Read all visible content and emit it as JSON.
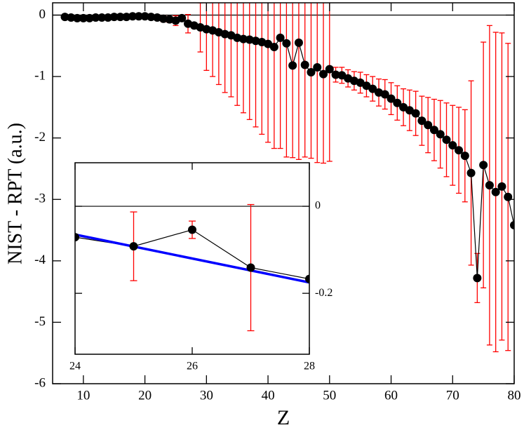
{
  "chart_data": [
    {
      "type": "line",
      "x_label": "Z",
      "y_label": "NIST - RPT (a.u.)",
      "xlim": [
        5,
        80
      ],
      "ylim": [
        -6,
        0.2
      ],
      "xticks": [
        10,
        20,
        30,
        40,
        50,
        60,
        70,
        80
      ],
      "yticks": [
        0,
        -1,
        -2,
        -3,
        -4,
        -5,
        -6
      ],
      "zero_line": true,
      "yaxis_side": "left",
      "x": [
        7,
        8,
        9,
        10,
        11,
        12,
        13,
        14,
        15,
        16,
        17,
        18,
        19,
        20,
        21,
        22,
        23,
        24,
        25,
        26,
        27,
        28,
        29,
        30,
        31,
        32,
        33,
        34,
        35,
        36,
        37,
        38,
        39,
        40,
        41,
        42,
        43,
        44,
        45,
        46,
        47,
        48,
        49,
        50,
        51,
        52,
        53,
        54,
        55,
        56,
        57,
        58,
        59,
        60,
        61,
        62,
        63,
        64,
        65,
        66,
        67,
        68,
        69,
        70,
        71,
        72,
        73,
        74,
        75,
        76,
        77,
        78,
        79,
        80
      ],
      "series": [
        {
          "color": "#000000",
          "error_color": "#ff0000",
          "values": [
            -0.03,
            -0.04,
            -0.05,
            -0.05,
            -0.05,
            -0.04,
            -0.04,
            -0.04,
            -0.03,
            -0.03,
            -0.03,
            -0.02,
            -0.02,
            -0.02,
            -0.03,
            -0.04,
            -0.06,
            -0.07,
            -0.09,
            -0.05,
            -0.14,
            -0.17,
            -0.2,
            -0.23,
            -0.25,
            -0.28,
            -0.31,
            -0.33,
            -0.37,
            -0.39,
            -0.4,
            -0.42,
            -0.44,
            -0.47,
            -0.52,
            -0.37,
            -0.46,
            -0.82,
            -0.45,
            -0.81,
            -0.93,
            -0.85,
            -0.96,
            -0.88,
            -0.97,
            -0.98,
            -1.03,
            -1.07,
            -1.1,
            -1.15,
            -1.2,
            -1.26,
            -1.29,
            -1.36,
            -1.43,
            -1.5,
            -1.55,
            -1.6,
            -1.72,
            -1.79,
            -1.87,
            -1.94,
            -2.03,
            -2.12,
            -2.2,
            -2.29,
            -2.57,
            -4.28,
            -2.44,
            -2.77,
            -2.88,
            -2.79,
            -2.96,
            -3.42
          ],
          "errors": [
            null,
            null,
            null,
            null,
            null,
            null,
            null,
            null,
            null,
            null,
            null,
            null,
            null,
            null,
            0.02,
            0.03,
            0.05,
            0.05,
            0.08,
            0.02,
            0.15,
            0.02,
            0.4,
            0.67,
            0.75,
            0.85,
            0.95,
            1.0,
            1.1,
            1.2,
            1.3,
            1.4,
            1.5,
            1.6,
            1.65,
            1.8,
            1.85,
            1.5,
            1.9,
            1.5,
            1.4,
            1.55,
            1.45,
            1.5,
            0.12,
            0.13,
            0.14,
            0.15,
            0.17,
            0.18,
            0.2,
            0.22,
            0.24,
            0.26,
            0.28,
            0.3,
            0.33,
            0.36,
            0.4,
            0.45,
            0.5,
            0.55,
            0.6,
            0.65,
            0.7,
            0.75,
            1.5,
            0.4,
            2.0,
            2.6,
            2.6,
            2.5,
            2.5,
            null
          ]
        }
      ]
    },
    {
      "type": "line",
      "xlim": [
        24,
        28
      ],
      "ylim": [
        -0.34,
        0.1
      ],
      "xticks": [
        24,
        26,
        28
      ],
      "yticks": [
        0,
        -0.2
      ],
      "zero_line": true,
      "yaxis_side": "right",
      "x": [
        24,
        25,
        26,
        27,
        28
      ],
      "series": [
        {
          "color": "#000000",
          "error_color": "#ff0000",
          "values": [
            -0.071,
            -0.092,
            -0.054,
            -0.141,
            -0.167
          ],
          "errors": [
            null,
            0.079,
            0.02,
            0.145,
            null
          ]
        }
      ],
      "fit": {
        "color": "#0000ff",
        "x": [
          24,
          28
        ],
        "values": [
          -0.065,
          -0.175
        ]
      }
    }
  ]
}
